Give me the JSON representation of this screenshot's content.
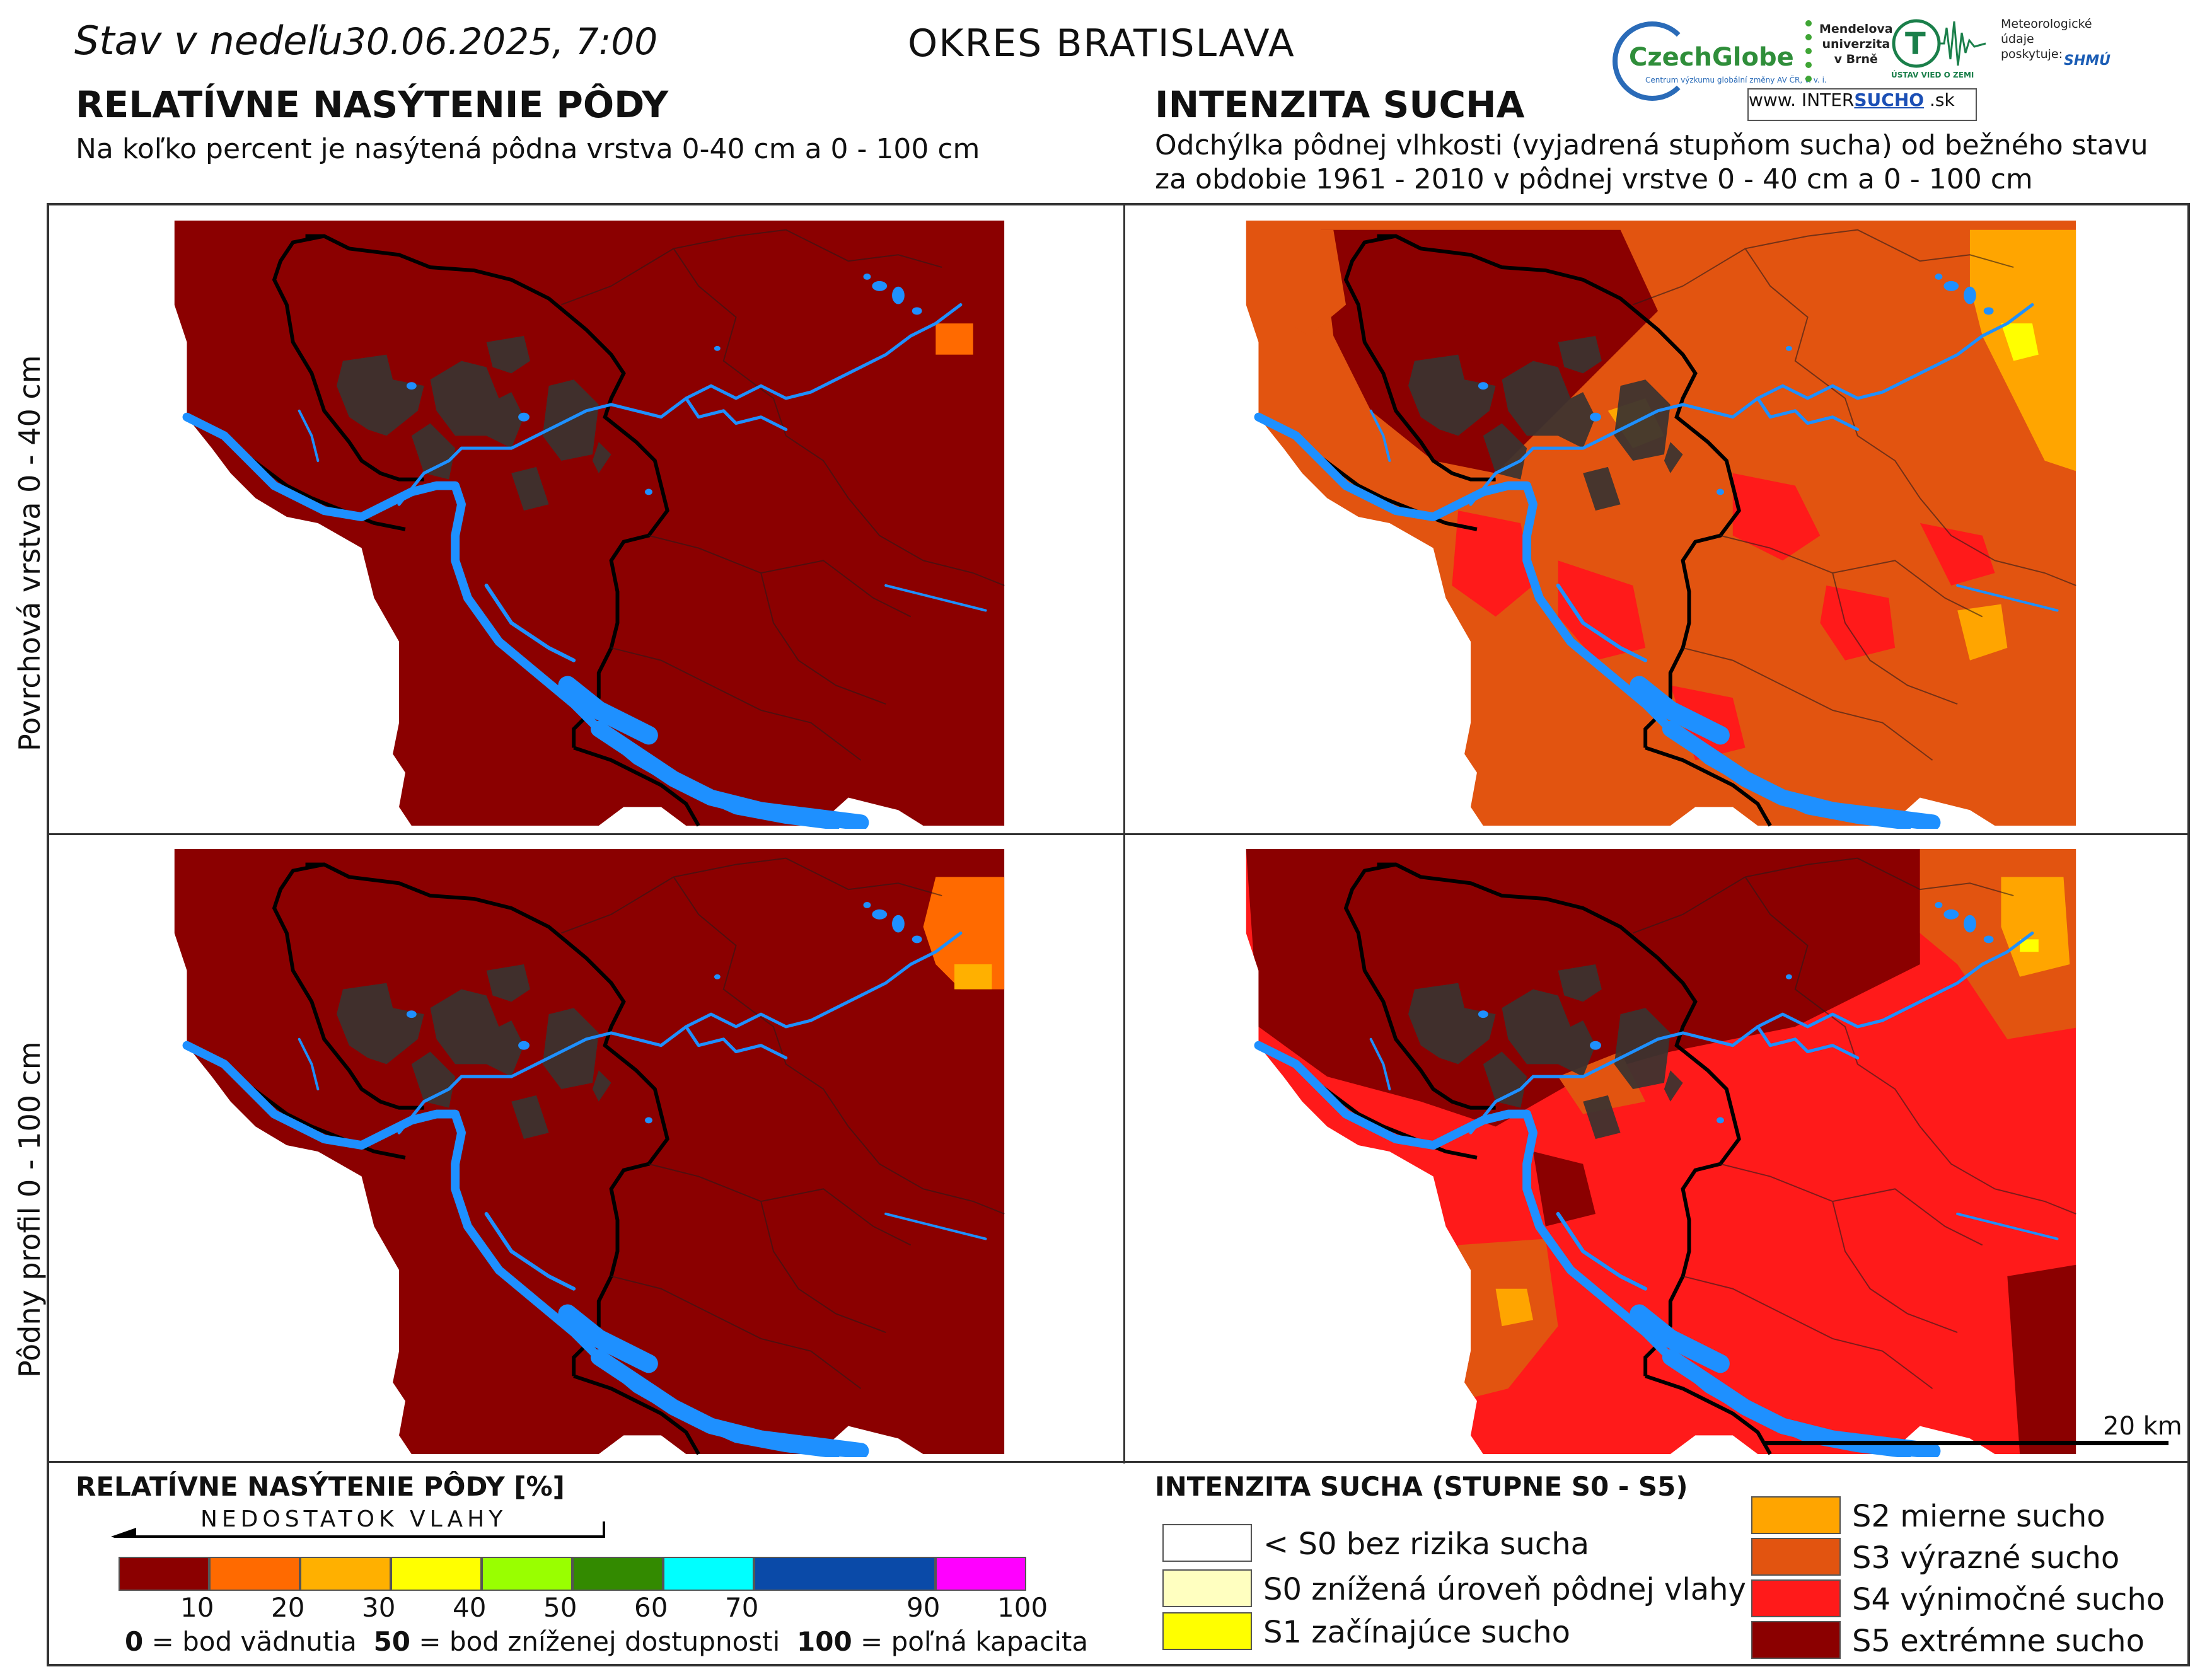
{
  "header": {
    "date_prefix": "Stav v nedeľu",
    "date": "30.06.2025, 7:00",
    "district": "OKRES  BRATISLAVA"
  },
  "left_section": {
    "title": "RELATÍVNE NASÝTENIE PÔDY",
    "subtitle": "Na koľko percent je nasýtená pôdna vrstva 0-40 cm a 0 - 100 cm"
  },
  "right_section": {
    "title": "INTENZITA SUCHA",
    "subtitle_line1": "Odchýlka pôdnej vlhkosti (vyjadrená stupňom sucha) od bežného stavu",
    "subtitle_line2": "za obdobie 1961 - 2010 v pôdnej vrstve 0 - 40 cm a 0 - 100 cm"
  },
  "logos": {
    "czechglobe": "CzechGlobe",
    "czechglobe_small": "Centrum výzkumu globální změny AV ČR, v. v. i.",
    "mendel": "Mendelova\nuniverzita\nv Brně",
    "ustav": "ÚSTAV VIED O ZEMI",
    "meteo": "Meteorologické\núdaje\nposkytuje:",
    "shmu": "SHMÚ",
    "intersucho_prefix": "www. INTER",
    "intersucho_bold": "SUCHO",
    "intersucho_suffix": " .sk"
  },
  "row_labels": {
    "top": "Povrchová vrstva 0 - 40 cm",
    "bottom": "Pôdny profil 0 - 100 cm"
  },
  "scale_bar_label": "20 km",
  "saturation_legend": {
    "title": "RELATÍVNE NASÝTENIE PÔDY [%]",
    "arrow_label": "NEDOSTATOK VLAHY",
    "colors": [
      "#8b0000",
      "#ff6a00",
      "#ffb000",
      "#ffff00",
      "#99ff00",
      "#338a00",
      "#00ffff",
      "#0a4aa8",
      "#ff00ff"
    ],
    "ticks": [
      "10",
      "20",
      "30",
      "40",
      "50",
      "60",
      "70",
      "90",
      "100"
    ],
    "note_0_value": "0",
    "note_0_text": " = bod vädnutia",
    "note_50_value": "50",
    "note_50_text": " = bod zníženej dostupnosti",
    "note_100_value": "100",
    "note_100_text": " = poľná kapacita"
  },
  "drought_legend": {
    "title": "INTENZITA SUCHA (STUPNE S0 - S5)",
    "items": [
      {
        "label": "< S0 bez rizika sucha",
        "color": "#ffffff"
      },
      {
        "label": "S0 znížená úroveň pôdnej vlahy",
        "color": "#ffffc0"
      },
      {
        "label": "S1 začínajúce sucho",
        "color": "#ffff00"
      },
      {
        "label": "S2 mierne sucho",
        "color": "#ffa500"
      },
      {
        "label": "S3 výrazné sucho",
        "color": "#e25410"
      },
      {
        "label": "S4 výnimočné sucho",
        "color": "#ff1a1a"
      },
      {
        "label": "S5 extrémne sucho",
        "color": "#8b0000"
      }
    ]
  },
  "map_colors": {
    "saturation_fill": "#8b0000",
    "saturation_patch": "#ff6a00",
    "urban": "#3a3330",
    "water": "#1e90ff",
    "border": "#000000",
    "s2": "#ffa500",
    "s3": "#e25410",
    "s4": "#ff1a1a",
    "s5": "#8b0000"
  }
}
